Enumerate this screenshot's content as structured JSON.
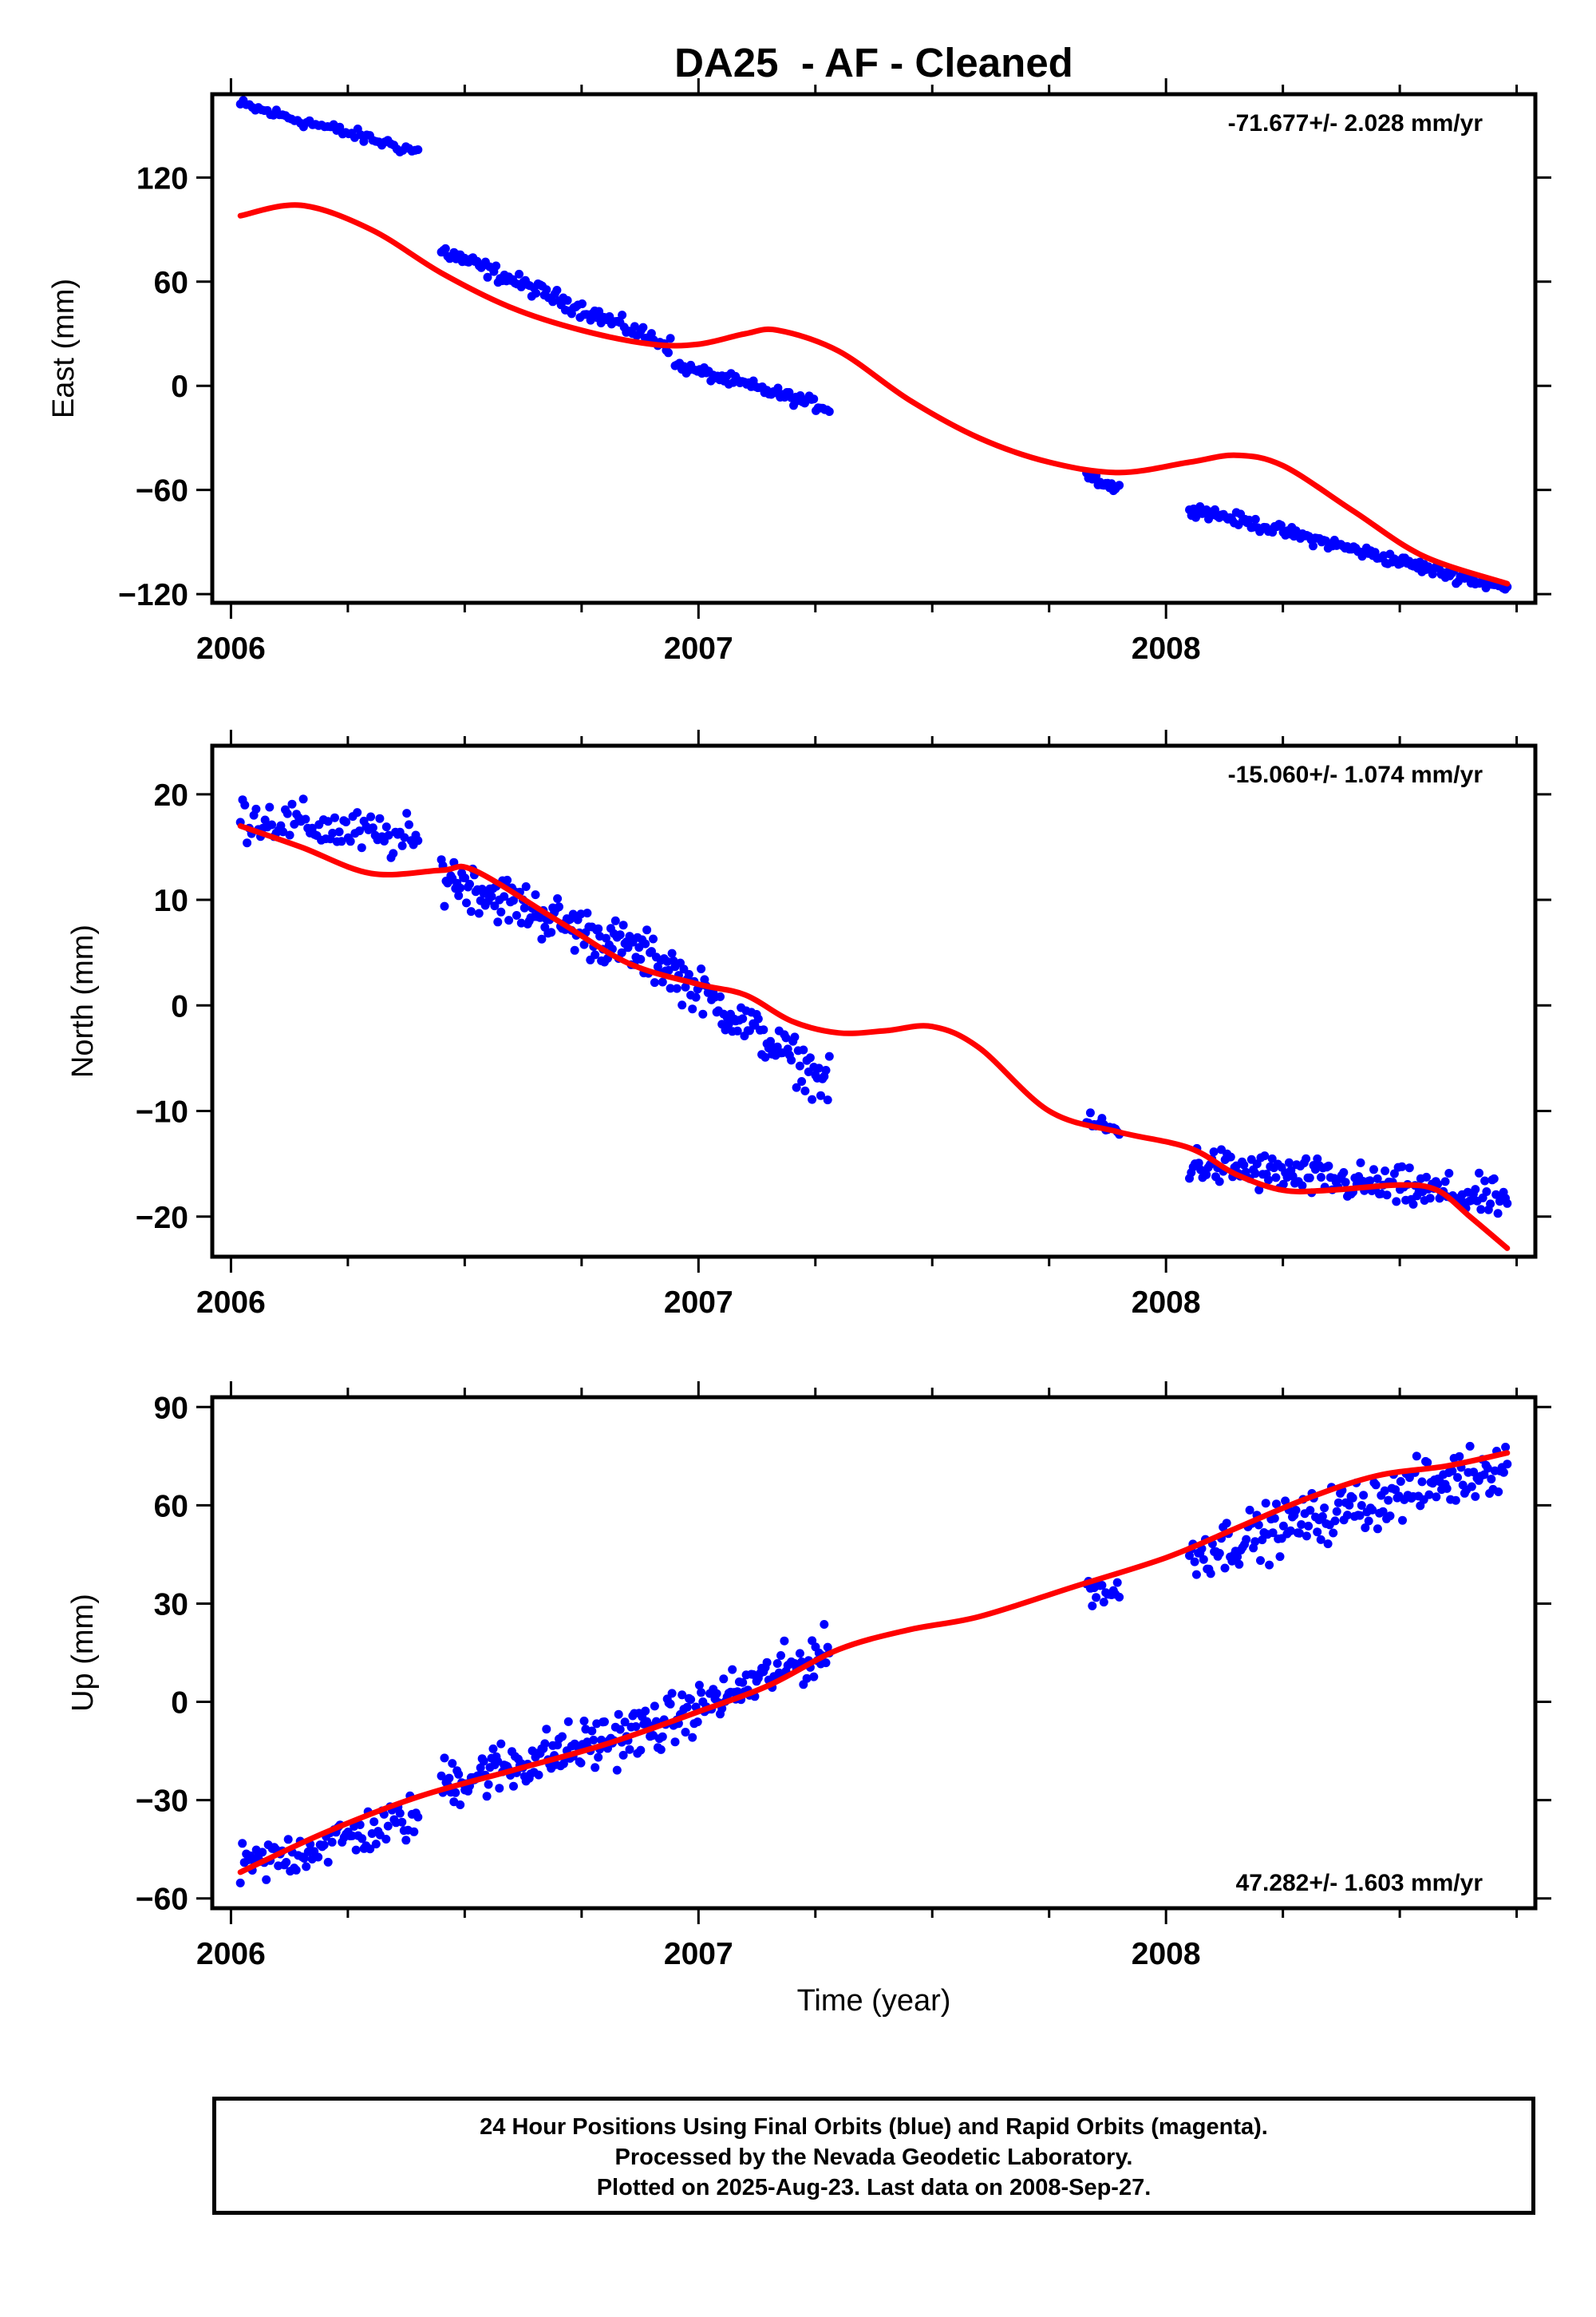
{
  "title": "DA25  - AF - Cleaned",
  "xlabel": "Time (year)",
  "footer": {
    "line1": "24 Hour Positions Using Final Orbits (blue) and Rapid Orbits (magenta).",
    "line2": "Processed by the Nevada Geodetic Laboratory.",
    "line3": "Plotted on 2025-Aug-23. Last data on 2008-Sep-27."
  },
  "colors": {
    "points": "#0000ff",
    "fit": "#ff0000",
    "frame": "#000000"
  },
  "chart_data": [
    {
      "type": "scatter",
      "ylabel": "East (mm)",
      "rate_label": "-71.677+/- 2.028 mm/yr",
      "rate_position": "top-right",
      "xlim": [
        2005.96,
        2008.79
      ],
      "ylim": [
        -125,
        168
      ],
      "xticks": [
        2006,
        2007,
        2008
      ],
      "yticks": [
        -120,
        -60,
        0,
        60,
        120
      ],
      "grid": false,
      "series": [
        {
          "kind": "points",
          "segments": [
            {
              "x": [
                2006.02,
                2006.4
              ],
              "y": [
                162,
                135
              ],
              "scatter": 3,
              "n": 60
            },
            {
              "x": [
                2006.45,
                2006.94
              ],
              "y": [
                78,
                23
              ],
              "scatter": 4,
              "n": 110
            },
            {
              "x": [
                2006.95,
                2007.28
              ],
              "y": [
                12,
                -13
              ],
              "scatter": 3,
              "n": 70
            },
            {
              "x": [
                2007.83,
                2007.9
              ],
              "y": [
                -51,
                -60
              ],
              "scatter": 3,
              "n": 18
            },
            {
              "x": [
                2008.05,
                2008.73
              ],
              "y": [
                -70,
                -117
              ],
              "scatter": 3,
              "n": 150
            }
          ]
        },
        {
          "kind": "line",
          "x": [
            2006.02,
            2006.15,
            2006.3,
            2006.45,
            2006.6,
            2006.75,
            2006.9,
            2007.0,
            2007.1,
            2007.17,
            2007.3,
            2007.45,
            2007.6,
            2007.75,
            2007.9,
            2008.05,
            2008.15,
            2008.25,
            2008.4,
            2008.55,
            2008.73
          ],
          "y": [
            98,
            104,
            90,
            65,
            45,
            32,
            24,
            24,
            30,
            32,
            20,
            -8,
            -30,
            -44,
            -50,
            -44,
            -40,
            -46,
            -72,
            -98,
            -114
          ]
        }
      ]
    },
    {
      "type": "scatter",
      "ylabel": "North (mm)",
      "rate_label": "-15.060+/- 1.074 mm/yr",
      "rate_position": "top-right",
      "xlim": [
        2005.96,
        2008.79
      ],
      "ylim": [
        -23.8,
        24.6
      ],
      "xticks": [
        2006,
        2007,
        2008
      ],
      "yticks": [
        -20,
        -10,
        0,
        10,
        20
      ],
      "grid": false,
      "series": [
        {
          "kind": "points",
          "segments": [
            {
              "x": [
                2006.02,
                2006.4
              ],
              "y": [
                18,
                15.5
              ],
              "scatter": 1.8,
              "n": 80
            },
            {
              "x": [
                2006.45,
                2006.95
              ],
              "y": [
                12.5,
                3.5
              ],
              "scatter": 2.0,
              "n": 150
            },
            {
              "x": [
                2006.95,
                2007.28
              ],
              "y": [
                3,
                -7.5
              ],
              "scatter": 1.8,
              "n": 90
            },
            {
              "x": [
                2007.83,
                2007.9
              ],
              "y": [
                -11,
                -12
              ],
              "scatter": 1.0,
              "n": 18
            },
            {
              "x": [
                2008.05,
                2008.73
              ],
              "y": [
                -15,
                -18.5
              ],
              "scatter": 1.6,
              "n": 170
            }
          ]
        },
        {
          "kind": "line",
          "x": [
            2006.02,
            2006.15,
            2006.3,
            2006.45,
            2006.52,
            2006.7,
            2006.85,
            2007.0,
            2007.1,
            2007.2,
            2007.3,
            2007.4,
            2007.5,
            2007.6,
            2007.75,
            2007.9,
            2008.05,
            2008.15,
            2008.25,
            2008.35,
            2008.5,
            2008.58,
            2008.65,
            2008.73
          ],
          "y": [
            17,
            15,
            12.5,
            12.8,
            12.8,
            8,
            4,
            2,
            1,
            -1.5,
            -2.6,
            -2.4,
            -2,
            -4,
            -10,
            -12,
            -13.5,
            -16,
            -17.5,
            -17.5,
            -17,
            -17.5,
            -20,
            -23
          ]
        }
      ]
    },
    {
      "type": "scatter",
      "ylabel": "Up (mm)",
      "rate_label": "47.282+/- 1.603 mm/yr",
      "rate_position": "bottom-right",
      "xlim": [
        2005.96,
        2008.79
      ],
      "ylim": [
        -63,
        93
      ],
      "xticks": [
        2006,
        2007,
        2008
      ],
      "yticks": [
        -60,
        -30,
        0,
        30,
        60,
        90
      ],
      "grid": false,
      "series": [
        {
          "kind": "points",
          "segments": [
            {
              "x": [
                2006.02,
                2006.4
              ],
              "y": [
                -51,
                -35
              ],
              "scatter": 6,
              "n": 90
            },
            {
              "x": [
                2006.45,
                2006.95
              ],
              "y": [
                -25,
                -6
              ],
              "scatter": 7,
              "n": 150
            },
            {
              "x": [
                2006.95,
                2007.28
              ],
              "y": [
                -5,
                16
              ],
              "scatter": 6,
              "n": 90
            },
            {
              "x": [
                2007.83,
                2007.9
              ],
              "y": [
                35,
                33
              ],
              "scatter": 4,
              "n": 18
            },
            {
              "x": [
                2008.05,
                2008.73
              ],
              "y": [
                45,
                73
              ],
              "scatter": 7,
              "n": 180
            }
          ]
        },
        {
          "kind": "line",
          "x": [
            2006.02,
            2006.2,
            2006.4,
            2006.6,
            2006.8,
            2007.0,
            2007.15,
            2007.3,
            2007.45,
            2007.6,
            2007.8,
            2008.0,
            2008.15,
            2008.3,
            2008.45,
            2008.6,
            2008.73
          ],
          "y": [
            -52,
            -40,
            -29,
            -21,
            -13,
            -3,
            5,
            16,
            22,
            26,
            35,
            44,
            53,
            62,
            69,
            72,
            76
          ]
        }
      ]
    }
  ]
}
